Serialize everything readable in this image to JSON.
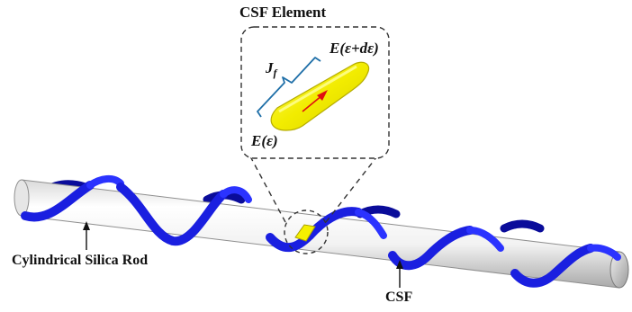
{
  "title": "CSF Element",
  "labels": {
    "rod": "Cylindrical Silica Rod",
    "csf": "CSF",
    "flux": "J",
    "flux_subscript": "f",
    "energy_end": "E(ε+dε)",
    "energy_start": "E(ε)"
  },
  "colors": {
    "helix": "#1a1fe0",
    "helix_dark": "#0a0c9a",
    "element": "#f5f000",
    "arrow": "#e01010",
    "bracket": "#1f6fa8",
    "rod_light": "#ffffff",
    "rod_shadow": "#b9b9b9",
    "frame": "#333333"
  },
  "icons": [
    "up-arrow-icon",
    "red-flow-arrow-icon",
    "curly-bracket-icon"
  ]
}
